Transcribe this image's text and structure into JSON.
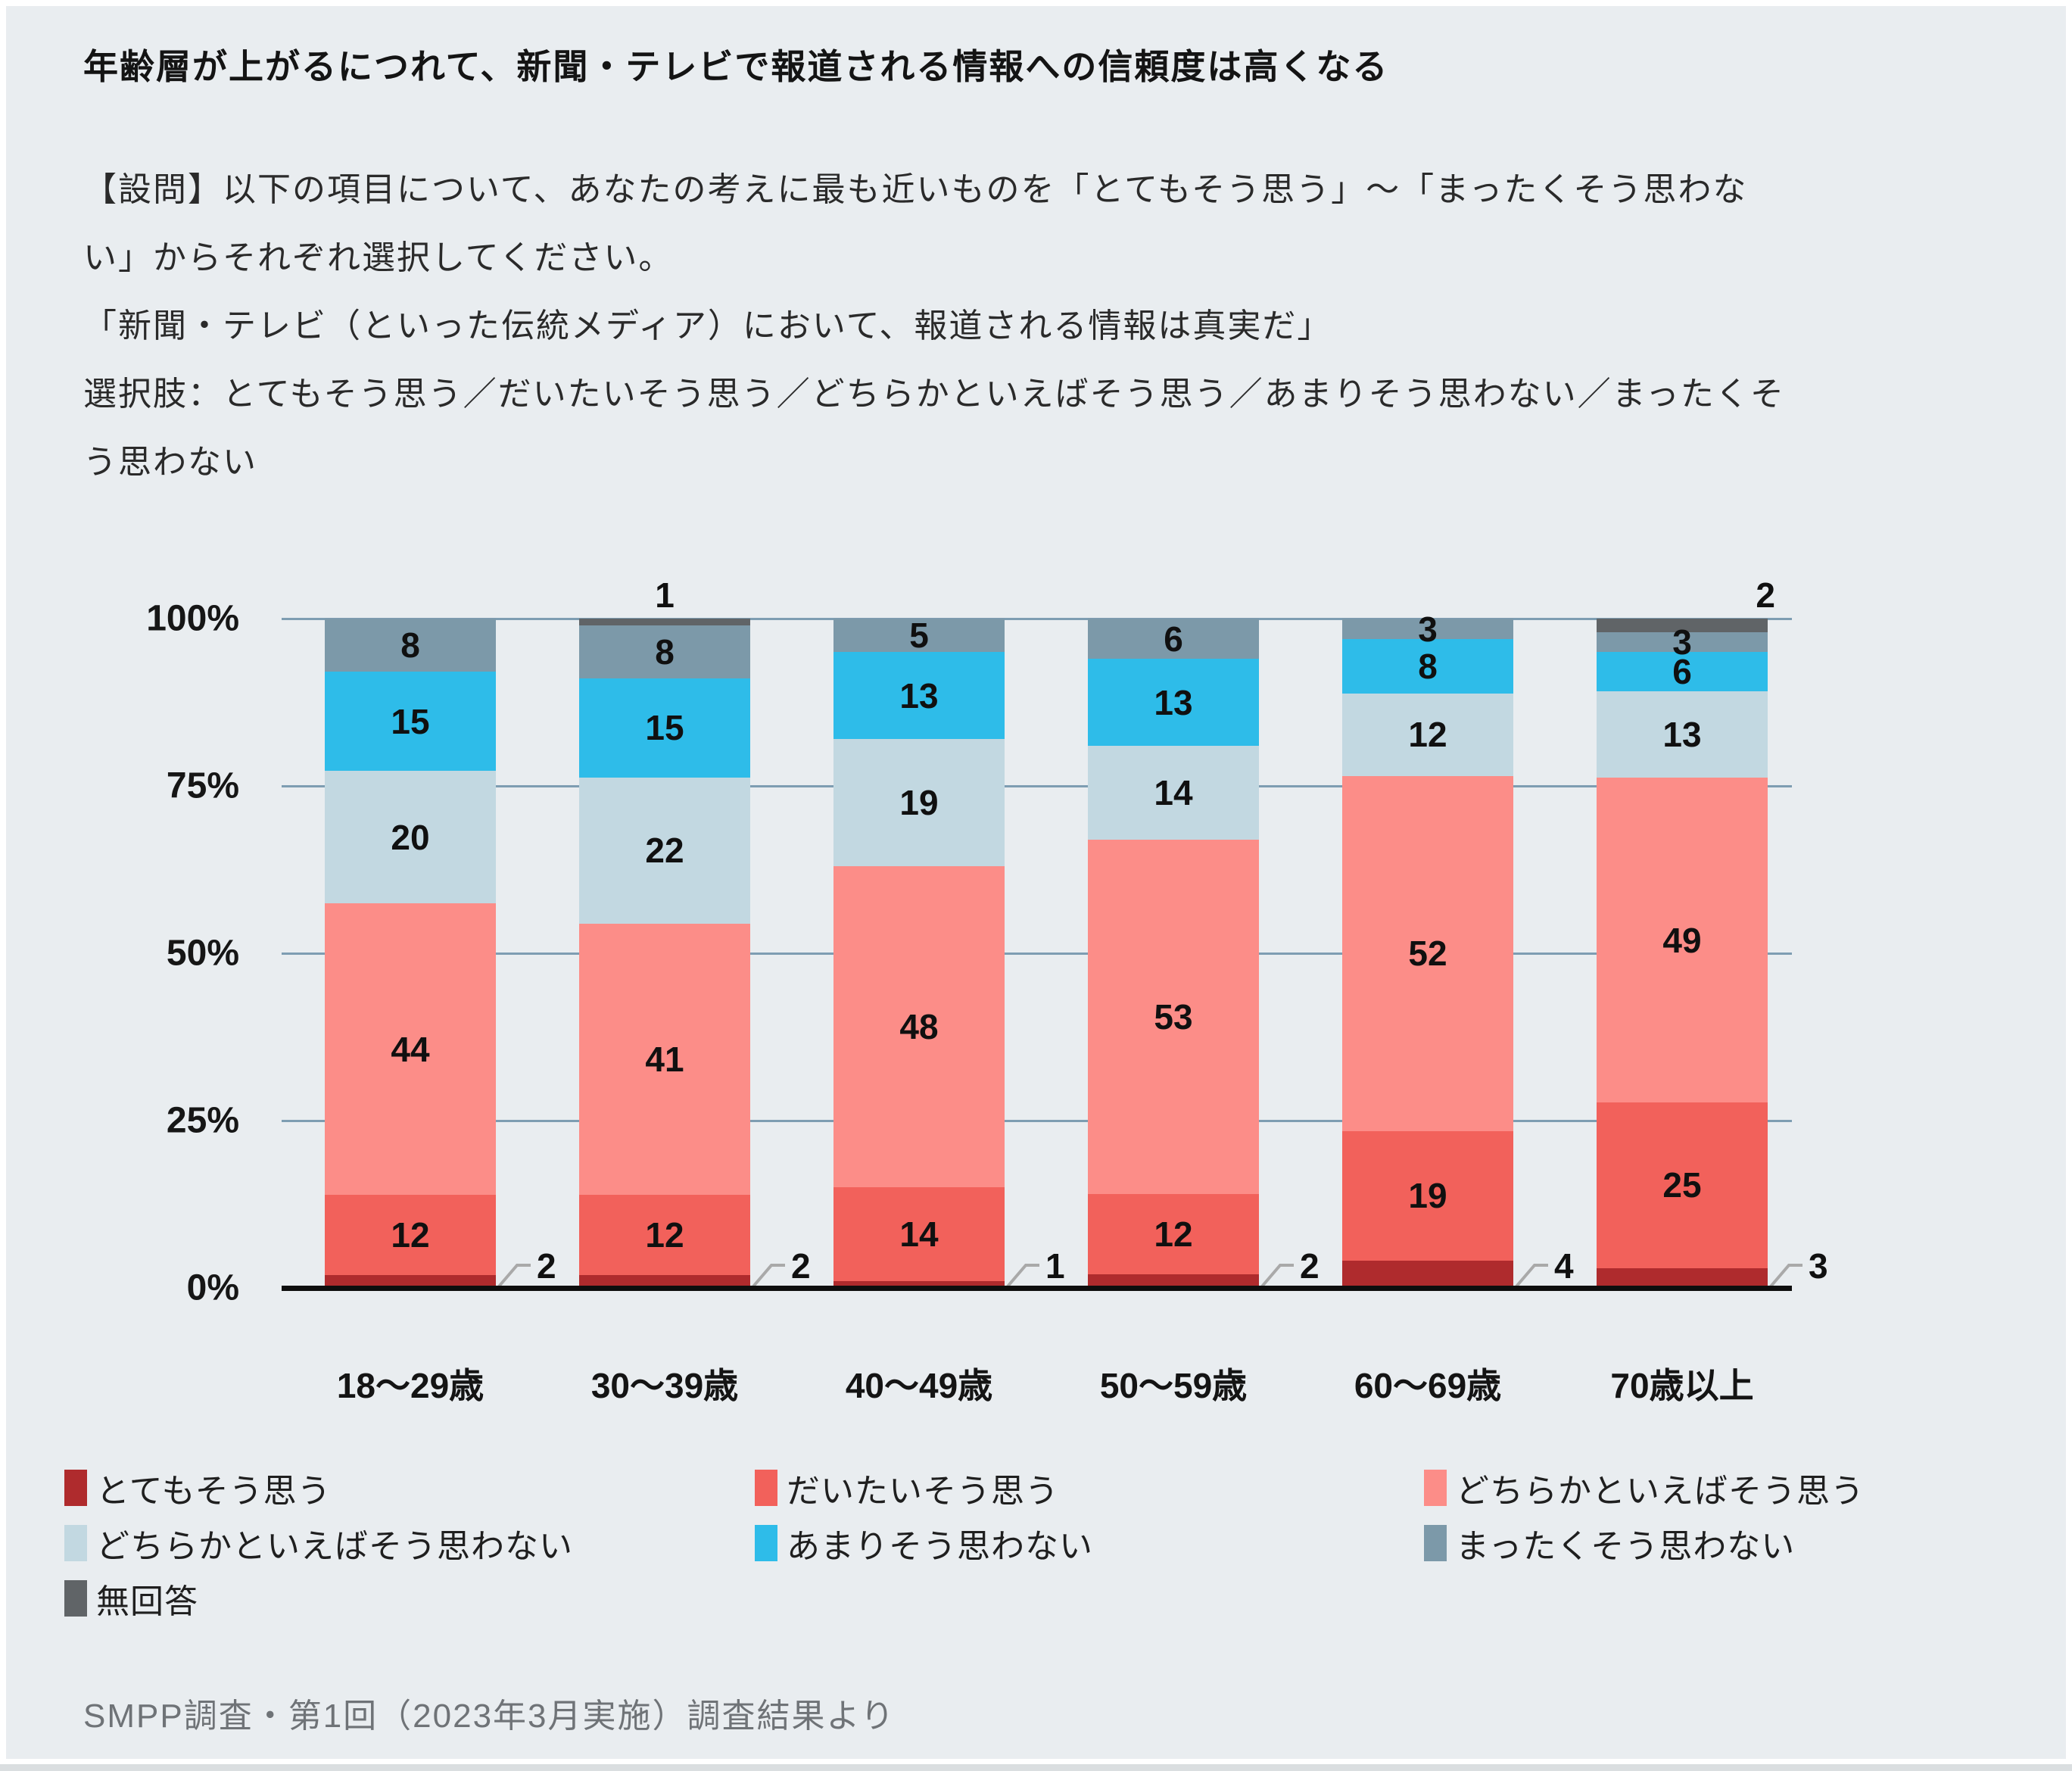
{
  "title": "年齢層が上がるにつれて、新聞・テレビで報道される情報への信頼度は高くなる",
  "question_lines": [
    "【設問】以下の項目について、あなたの考えに最も近いものを「とてもそう思う」〜「まったくそう思わな",
    "い」からそれぞれ選択してください。",
    "「新聞・テレビ（といった伝統メディア）において、報道される情報は真実だ」",
    "選択肢：とてもそう思う／だいたいそう思う／どちらかといえばそう思う／あまりそう思わない／まったくそ",
    "う思わない"
  ],
  "chart_data": {
    "type": "bar",
    "stacked": true,
    "unit": "%",
    "categories": [
      "18〜29歳",
      "30〜39歳",
      "40〜49歳",
      "50〜59歳",
      "60〜69歳",
      "70歳以上"
    ],
    "series": [
      {
        "name": "とてもそう思う",
        "color": "#AF2B2D",
        "values": [
          2,
          2,
          1,
          2,
          4,
          3
        ],
        "labels": "callout-right"
      },
      {
        "name": "だいたいそう思う",
        "color": "#F2615B",
        "values": [
          12,
          12,
          14,
          12,
          19,
          25
        ],
        "labels": "inside"
      },
      {
        "name": "どちらかといえばそう思う",
        "color": "#FC8D88",
        "values": [
          44,
          41,
          48,
          53,
          52,
          49
        ],
        "labels": "inside"
      },
      {
        "name": "どちらかといえばそう思わない",
        "color": "#C2D8E1",
        "values": [
          20,
          22,
          19,
          14,
          12,
          13
        ],
        "labels": "inside"
      },
      {
        "name": "あまりそう思わない",
        "color": "#2EBCE9",
        "values": [
          15,
          15,
          13,
          13,
          8,
          6
        ],
        "labels": "inside"
      },
      {
        "name": "まったくそう思わない",
        "color": "#7C99A9",
        "values": [
          8,
          8,
          5,
          6,
          3,
          3
        ],
        "labels": "inside"
      },
      {
        "name": "無回答",
        "color": "#606467",
        "values": [
          0,
          1,
          0,
          0,
          0,
          2
        ],
        "labels": "above"
      }
    ],
    "yticks": [
      "100%",
      "75%",
      "50%",
      "25%",
      "0%"
    ],
    "ylim": [
      0,
      100
    ],
    "grid": true,
    "legend_position": "bottom"
  },
  "footer": "SMPP調査・第1回（2023年3月実施）調査結果より",
  "colors": {
    "background": "#E9EDF0",
    "frame": "#FFFFFF",
    "gridline": "#7E9DB2",
    "axis": "#0E0E0E",
    "leader": "#A9A9A9",
    "text": "#141414",
    "footer_text": "#6F7377"
  }
}
